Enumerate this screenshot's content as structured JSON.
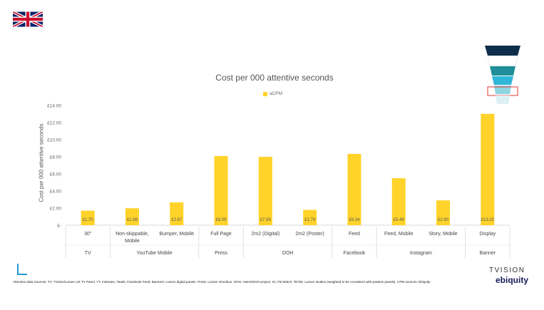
{
  "page": {
    "footnote": "Attention data Sources: TV: Tvision/Lumen UK TV Panel. YT, Instream, Teads, Facebook Feed, Banners: Lumen digital panels. Press: Lumen Omnibus. OOH: AMADOOH project. IG, FB Watch, TikTok: Lumen studies (weighted to be consistent with passive panels). CPM sources: Ebiquity",
    "logos": {
      "tvision": "TVISION",
      "ebiquity": "ebiquity"
    },
    "flag_icon": "uk-flag-icon",
    "accent_colors": {
      "bar": "#FFD32A",
      "blue": "#1E9BD7",
      "teal": "#1F8F99",
      "highlight": "#E53935"
    }
  },
  "chart_data": {
    "type": "bar",
    "title": "Cost per 000 attentive seconds",
    "ylabel": "Cost per 000 attentive seconds",
    "xlabel": "",
    "ylim": [
      0,
      14
    ],
    "yticks": [
      "£-",
      "£2.00",
      "£4.00",
      "£6.00",
      "£8.00",
      "£10.00",
      "£12.00",
      "£14.00"
    ],
    "grid": false,
    "legend_position": "top-center",
    "series": [
      {
        "name": "aCPM",
        "color": "#FFD32A",
        "values": [
          1.7,
          1.98,
          2.67,
          8.09,
          7.99,
          1.79,
          8.34,
          5.49,
          2.9,
          13.02
        ],
        "labels": [
          "£1.70",
          "£1.98",
          "£2.67",
          "£8.09",
          "£7.99",
          "£1.79",
          "£8.34",
          "£5.49",
          "£2.90",
          "£13.02"
        ]
      }
    ],
    "categories": [
      "30\"",
      "Non-skippable, Mobile",
      "Bumper, Mobile",
      "Full Page",
      "2m2 (Digital)",
      "2m2 (Poster)",
      "Feed",
      "Feed, Mobile",
      "Story, Mobile",
      "Display"
    ],
    "category_groups": [
      {
        "label": "TV",
        "span": 1
      },
      {
        "label": "YouTube Mobile",
        "span": 2
      },
      {
        "label": "Press",
        "span": 1
      },
      {
        "label": "OOH",
        "span": 2
      },
      {
        "label": "Facebook",
        "span": 1
      },
      {
        "label": "Instagram",
        "span": 2
      },
      {
        "label": "Banner",
        "span": 1
      }
    ]
  }
}
